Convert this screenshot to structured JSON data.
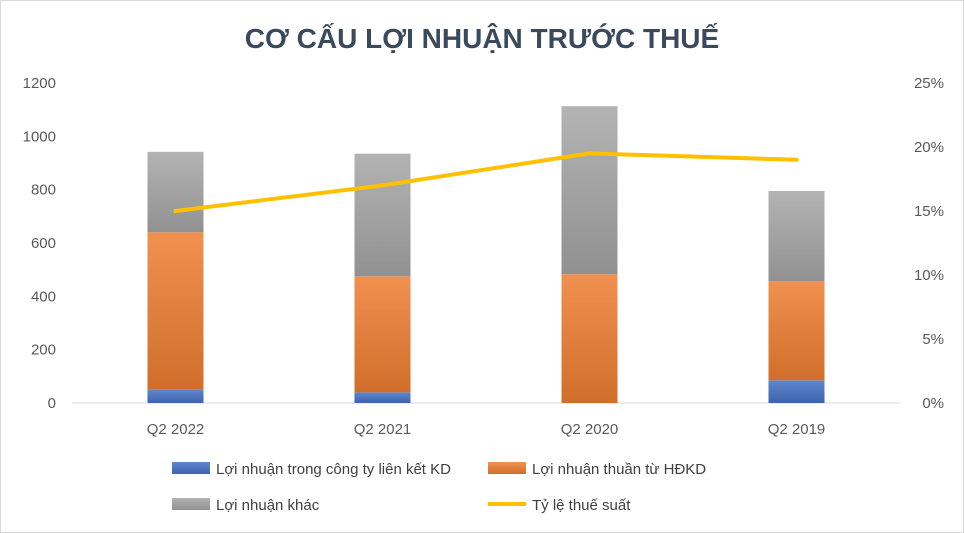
{
  "chart_data": {
    "type": "bar",
    "subtype": "stacked-bar-with-line",
    "title": "CƠ CẤU LỢI NHUẬN TRƯỚC THUẾ",
    "categories": [
      "Q2 2022",
      "Q2 2021",
      "Q2 2020",
      "Q2 2019"
    ],
    "series": [
      {
        "name": "Lợi nhuận trong công ty liên kết KD",
        "type": "bar",
        "axis": "left",
        "color": "#4472c4",
        "values": [
          50,
          40,
          0,
          85
        ]
      },
      {
        "name": "Lợi nhuận thuần từ HĐKD",
        "type": "bar",
        "axis": "left",
        "color": "#ed7d31",
        "values": [
          590,
          435,
          483,
          372
        ]
      },
      {
        "name": "Lợi nhuận khác",
        "type": "bar",
        "axis": "left",
        "color": "#a5a5a5",
        "values": [
          302,
          460,
          630,
          338
        ]
      },
      {
        "name": "Tỷ lệ thuế suất",
        "type": "line",
        "axis": "right",
        "color": "#ffc000",
        "values": [
          0.15,
          0.17,
          0.195,
          0.19
        ]
      }
    ],
    "y_left": {
      "min": 0,
      "max": 1200,
      "ticks": [
        "0",
        "200",
        "400",
        "600",
        "800",
        "1000",
        "1200"
      ]
    },
    "y_right": {
      "min": 0,
      "max": 0.25,
      "ticks": [
        "0%",
        "5%",
        "10%",
        "15%",
        "20%",
        "25%"
      ]
    },
    "grid": false,
    "legend_position": "bottom"
  }
}
